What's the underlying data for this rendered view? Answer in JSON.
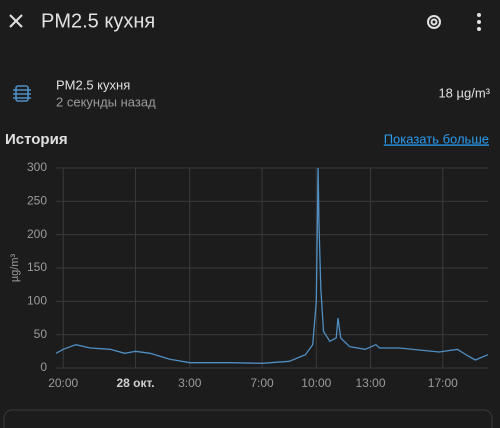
{
  "header": {
    "title": "PM2.5 кухня"
  },
  "entity": {
    "name": "PM2.5 кухня",
    "updated": "2 секунды назад",
    "state": "18 µg/m³"
  },
  "history": {
    "title": "История",
    "link": "Показать больше"
  },
  "chart_data": {
    "type": "line",
    "y_label": "µg/m³",
    "ylim": [
      0,
      300
    ],
    "yticks": [
      0,
      50,
      100,
      150,
      200,
      250,
      300
    ],
    "grid": true,
    "xlim": [
      -0.4,
      23.5
    ],
    "xticks": [
      {
        "value": 0,
        "label": "20:00"
      },
      {
        "value": 4,
        "label": "28 окт."
      },
      {
        "value": 7,
        "label": "3:00"
      },
      {
        "value": 11,
        "label": "7:00"
      },
      {
        "value": 14,
        "label": "10:00"
      },
      {
        "value": 17,
        "label": "13:00"
      },
      {
        "value": 21,
        "label": "17:00"
      }
    ],
    "series": [
      {
        "color": "#4f8fc4",
        "x": [
          -0.4,
          0,
          0.7,
          1.5,
          2.6,
          3.4,
          4,
          4.8,
          5.9,
          7,
          9.2,
          11,
          12.5,
          13.4,
          13.8,
          14,
          14.1,
          14.15,
          14.25,
          14.4,
          14.75,
          15.1,
          15.2,
          15.35,
          15.85,
          16.7,
          17.3,
          17.5,
          18.6,
          19.7,
          20.8,
          21.8,
          22.4,
          22.8,
          23.5
        ],
        "values": [
          22,
          28,
          35,
          30,
          28,
          22,
          25,
          22,
          13,
          8,
          8,
          7,
          10,
          20,
          35,
          100,
          300,
          215,
          120,
          55,
          40,
          45,
          75,
          45,
          32,
          28,
          35,
          30,
          30,
          27,
          24,
          28,
          18,
          12,
          20
        ]
      }
    ]
  }
}
